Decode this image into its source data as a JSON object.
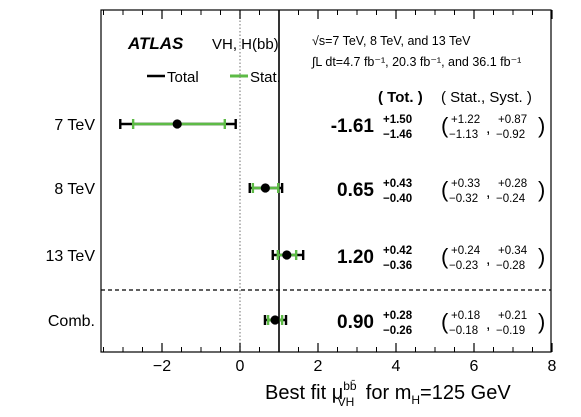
{
  "chart_data": {
    "type": "scatter",
    "brand": "ATLAS",
    "process_label": "VH, H(bb)",
    "energy_label": "√s=7 TeV, 8 TeV, and 13 TeV",
    "lumi_label": "∫L dt=4.7 fb⁻¹, 20.3 fb⁻¹, and 36.1 fb⁻¹",
    "legend": {
      "total": "Total",
      "stat": "Stat.",
      "placement": "top-left"
    },
    "column_headers": {
      "total": "( Tot. )",
      "stat_syst": "( Stat., Syst. )"
    },
    "xlabel": "Best fit μ_VH^bb̄ for m_H=125 GeV",
    "xlim": [
      -3.5,
      8
    ],
    "xticks": [
      "−2",
      "0",
      "2",
      "4",
      "6",
      "8"
    ],
    "xtick_values": [
      -2,
      0,
      2,
      4,
      6,
      8
    ],
    "reference_lines": {
      "sm": 1,
      "zero": 0
    },
    "colors": {
      "total": "#000000",
      "stat": "#5dbb46"
    },
    "categories": [
      "7 TeV",
      "8 TeV",
      "13 TeV",
      "Comb."
    ],
    "points": [
      {
        "label": "7 TeV",
        "value": -1.61,
        "value_text": "-1.61",
        "tot_up": 1.5,
        "tot_dn": 1.46,
        "tot_up_text": "+1.50",
        "tot_dn_text": "−1.46",
        "stat_up": 1.22,
        "stat_dn": 1.13,
        "stat_up_text": "+1.22",
        "stat_dn_text": "−1.13",
        "syst_up_text": "+0.87",
        "syst_dn_text": "−0.92"
      },
      {
        "label": "8 TeV",
        "value": 0.65,
        "value_text": "0.65",
        "tot_up": 0.43,
        "tot_dn": 0.4,
        "tot_up_text": "+0.43",
        "tot_dn_text": "−0.40",
        "stat_up": 0.33,
        "stat_dn": 0.32,
        "stat_up_text": "+0.33",
        "stat_dn_text": "−0.32",
        "syst_up_text": "+0.28",
        "syst_dn_text": "−0.24"
      },
      {
        "label": "13 TeV",
        "value": 1.2,
        "value_text": "1.20",
        "tot_up": 0.42,
        "tot_dn": 0.36,
        "tot_up_text": "+0.42",
        "tot_dn_text": "−0.36",
        "stat_up": 0.24,
        "stat_dn": 0.23,
        "stat_up_text": "+0.24",
        "stat_dn_text": "−0.23",
        "syst_up_text": "+0.34",
        "syst_dn_text": "−0.28"
      },
      {
        "label": "Comb.",
        "value": 0.9,
        "value_text": "0.90",
        "tot_up": 0.28,
        "tot_dn": 0.26,
        "tot_up_text": "+0.28",
        "tot_dn_text": "−0.26",
        "stat_up": 0.18,
        "stat_dn": 0.18,
        "stat_up_text": "+0.18",
        "stat_dn_text": "−0.18",
        "syst_up_text": "+0.21",
        "syst_dn_text": "−0.19"
      }
    ]
  }
}
